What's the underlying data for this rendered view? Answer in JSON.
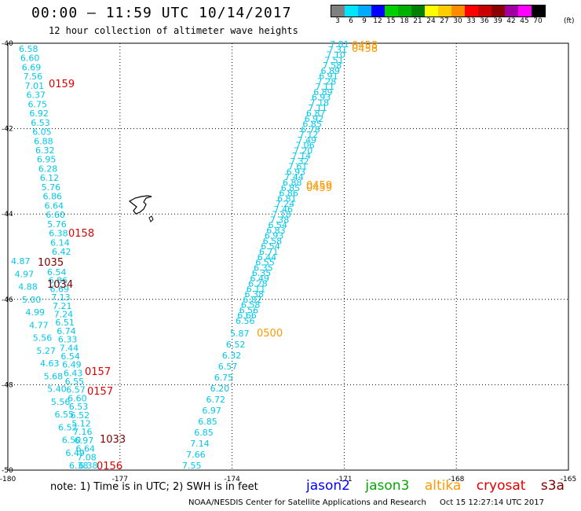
{
  "header": {
    "title": "00:00 – 11:59 UTC 10/14/2017",
    "subtitle": "12 hour collection of altimeter wave heights"
  },
  "legend": {
    "items": [
      {
        "label": "3",
        "color": "#7f7f7f"
      },
      {
        "label": "6",
        "color": "#00e5ff"
      },
      {
        "label": "9",
        "color": "#00aaff"
      },
      {
        "label": "12",
        "color": "#0000ff"
      },
      {
        "label": "15",
        "color": "#00d000"
      },
      {
        "label": "18",
        "color": "#00b000"
      },
      {
        "label": "21",
        "color": "#008000"
      },
      {
        "label": "24",
        "color": "#ffff00"
      },
      {
        "label": "27",
        "color": "#ffcc00"
      },
      {
        "label": "30",
        "color": "#ff8c00"
      },
      {
        "label": "33",
        "color": "#ff0000"
      },
      {
        "label": "36",
        "color": "#c80000"
      },
      {
        "label": "39",
        "color": "#8b0000"
      },
      {
        "label": "42",
        "color": "#a000a0"
      },
      {
        "label": "45",
        "color": "#ff00ff"
      },
      {
        "label": "70",
        "color": "#000000"
      }
    ],
    "unit": "(ft)"
  },
  "map": {
    "x_ticks": [
      "-180",
      "-177",
      "-174",
      "-171",
      "-168",
      "-165"
    ],
    "y_ticks": [
      "-40",
      "-42",
      "-44",
      "-46",
      "-48",
      "-50"
    ],
    "tracks": [
      {
        "name": "cryosat-west",
        "values": [
          "6.58",
          "6.60",
          "6.69",
          "7.56",
          "7.01",
          "6.37",
          "6.75",
          "6.92",
          "6.53",
          "6.05",
          "6.88",
          "6.32",
          "6.95",
          "6.28",
          "6.12",
          "5.76",
          "6.86",
          "6.64",
          "6.60",
          "5.76",
          "6.38",
          "6.14",
          "6.42"
        ]
      },
      {
        "name": "west-mid",
        "values": [
          "6.54",
          "6.86",
          "6.69",
          "7.13",
          "7.21",
          "7.24",
          "6.51",
          "6.74",
          "6.33",
          "7.44",
          "6.54",
          "6.49",
          "6.43",
          "6.55",
          "6.57",
          "6.60",
          "6.53",
          "6.52",
          "5.12",
          "7.16",
          "6.97",
          "6.64",
          "7.08",
          "6.38"
        ]
      },
      {
        "name": "west-outer",
        "values": [
          "4.87",
          "4.97",
          "4.88",
          "5.00",
          "4.99",
          "4.77",
          "5.56",
          "5.27",
          "4.63",
          "5.68",
          "5.40",
          "5.56",
          "6.55",
          "6.52",
          "6.50",
          "6.49",
          "6.38"
        ]
      },
      {
        "name": "east-north",
        "values": [
          "7.81",
          "7.31",
          "7.10",
          "7.51",
          "7.58",
          "6.89",
          "6.91",
          "7.28",
          "7.11",
          "6.89",
          "6.93",
          "7.18",
          "7.11",
          "6.87",
          "6.92",
          "6.85",
          "6.78",
          "7.12",
          "7.49",
          "7.06",
          "7.20",
          "7.14",
          "7.32",
          "7.61",
          "6.93",
          "7.44",
          "6.88",
          "6.85",
          "6.86",
          "6.81",
          "7.24",
          "7.46",
          "7.18",
          "7.38",
          "6.54",
          "6.83",
          "6.93",
          "6.58",
          "6.54",
          "6.71",
          "6.44",
          "6.55",
          "6.35",
          "6.35",
          "6.49",
          "6.28",
          "6.11",
          "6.38",
          "6.82",
          "6.58",
          "6.56",
          "6.66",
          "6.56"
        ]
      },
      {
        "name": "east-south",
        "values": [
          "5.87",
          "6.52",
          "6.32",
          "6.57",
          "6.75",
          "6.20",
          "6.72",
          "6.97",
          "6.85",
          "6.85",
          "7.14",
          "7.66",
          "7.55"
        ]
      }
    ],
    "time_labels": [
      {
        "text": "0159",
        "sat": "cryosat"
      },
      {
        "text": "0158",
        "sat": "cryosat"
      },
      {
        "text": "1035",
        "sat": "s3a"
      },
      {
        "text": "1034",
        "sat": "s3a"
      },
      {
        "text": "0157",
        "sat": "cryosat"
      },
      {
        "text": "0157",
        "sat": "cryosat"
      },
      {
        "text": "1033",
        "sat": "s3a"
      },
      {
        "text": "0156",
        "sat": "cryosat"
      },
      {
        "text": "0458",
        "sat": "altika"
      },
      {
        "text": "0458",
        "sat": "altika"
      },
      {
        "text": "0459",
        "sat": "altika"
      },
      {
        "text": "0459",
        "sat": "altika"
      },
      {
        "text": "0500",
        "sat": "altika"
      }
    ],
    "colors": {
      "swh": "#00c8e8",
      "cryosat": "#e00000",
      "s3a": "#800000",
      "altika": "#ff9900",
      "jason2": "#0000ff",
      "jason3": "#00aa00"
    }
  },
  "footer": {
    "note": "note: 1) Time is in UTC; 2) SWH is in feet",
    "satellites": [
      "jason2",
      "jason3",
      "altika",
      "cryosat",
      "s3a"
    ],
    "credit_org": "NOAA/NESDIS Center for Satellite Applications and Research",
    "credit_time": "Oct 15 12:27:14 UTC 2017"
  }
}
